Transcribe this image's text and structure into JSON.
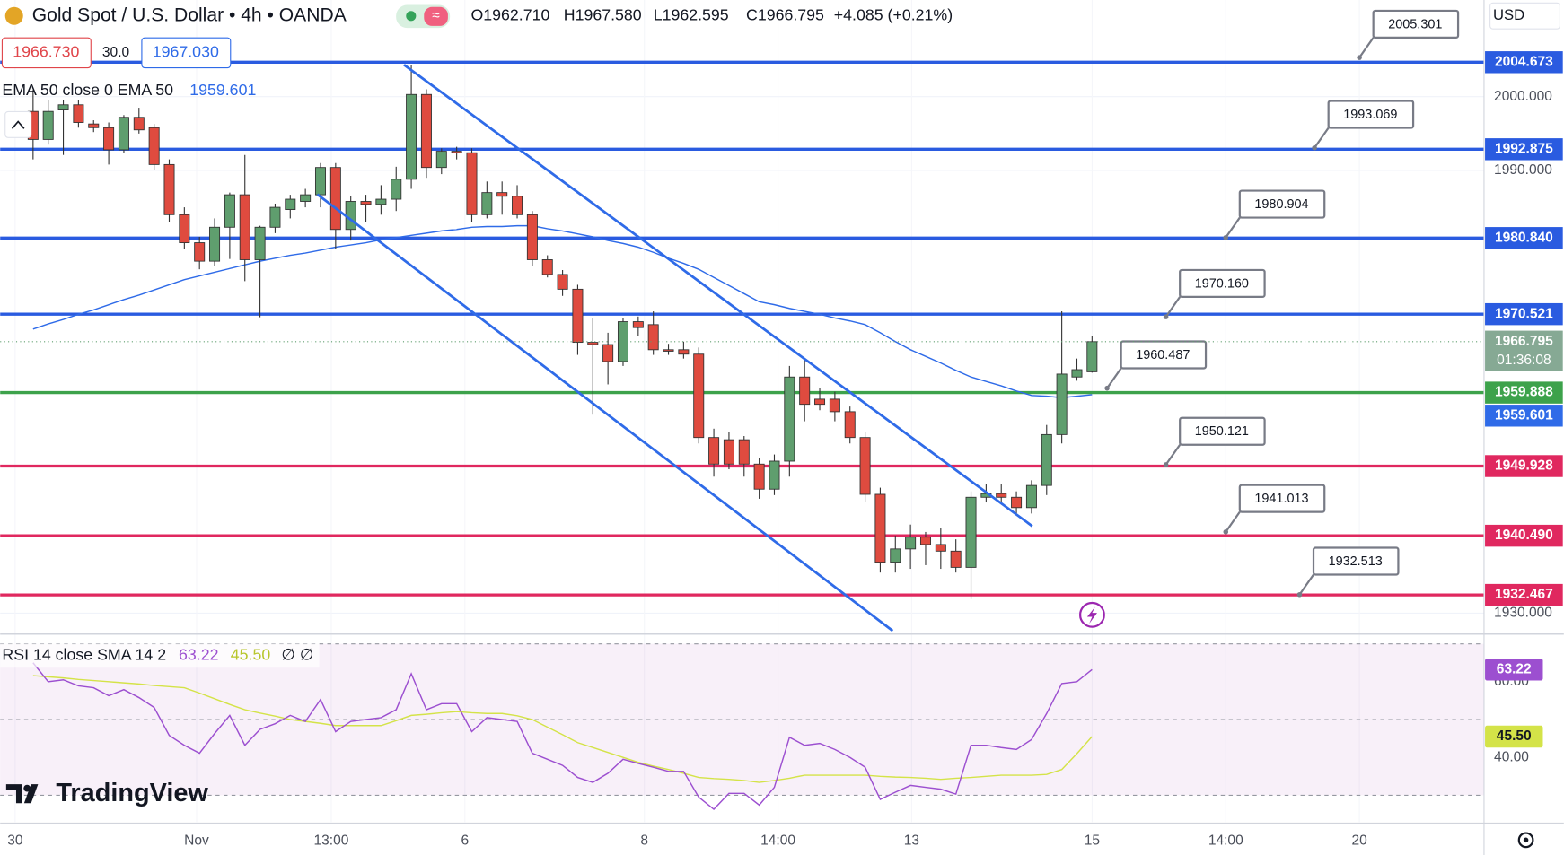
{
  "chart_data": {
    "type": "candlestick",
    "title": "Gold Spot / U.S. Dollar • 4h • OANDA",
    "ohlc": [
      "O1962.710",
      "H1967.580",
      "L1962.595",
      "C1966.795",
      "+4.085 (+0.21%)"
    ],
    "quote": {
      "sell": "1966.730",
      "spread": "30.0",
      "buy": "1967.030"
    },
    "currency": "USD",
    "brand": "TradingView",
    "countdown": "01:36:08",
    "up_color": "#5f9e6e",
    "down_color": "#df4b3f",
    "ylim": [
      1927.2,
      2013.1
    ],
    "yticks": [
      {
        "value": 2000,
        "label": "2000.000"
      },
      {
        "value": 1990,
        "label": "1990.000"
      },
      {
        "value": 1930,
        "label": "1930.000"
      }
    ],
    "xlabels": [
      "30",
      "Nov",
      "13:00",
      "6",
      "8",
      "14:00",
      "13",
      "15",
      "14:00",
      "20"
    ],
    "open": [
      1998.0,
      1994.2,
      1998.2,
      1998.9,
      1996.3,
      1995.8,
      1992.8,
      1997.2,
      1995.8,
      1990.8,
      1984.0,
      1980.2,
      1977.7,
      1982.3,
      1986.7,
      1977.9,
      1982.3,
      1984.7,
      1985.8,
      1986.7,
      1990.4,
      1982.0,
      1985.8,
      1985.4,
      1986.1,
      1988.8,
      2000.3,
      1990.4,
      1992.6,
      1992.4,
      1984.0,
      1987.0,
      1986.5,
      1984.0,
      1977.9,
      1975.9,
      1973.9,
      1966.7,
      1966.4,
      1964.1,
      1969.5,
      1969.1,
      1965.7,
      1965.7,
      1965.1,
      1953.8,
      1953.5,
      1953.5,
      1950.2,
      1946.8,
      1950.6,
      1962.0,
      1959.0,
      1959.0,
      1957.3,
      1953.8,
      1946.1,
      1936.9,
      1938.7,
      1940.3,
      1939.3,
      1938.4,
      1936.2,
      1945.7,
      1946.2,
      1945.7,
      1944.3,
      1947.3,
      1954.2,
      1962.0,
      1962.71
    ],
    "high": [
      2000.9,
      1999.6,
      1999.6,
      1999.6,
      1996.8,
      1996.5,
      1997.5,
      1998.5,
      1996.3,
      1991.5,
      1985.0,
      1981.0,
      1983.5,
      1987.0,
      1992.1,
      1982.5,
      1985.5,
      1986.7,
      1987.5,
      1991.0,
      1991.0,
      1986.5,
      1986.7,
      1988.0,
      1990.5,
      2004.3,
      2001.0,
      1993.0,
      1993.2,
      1993.0,
      1988.5,
      1988.5,
      1988.0,
      1984.5,
      1978.5,
      1976.5,
      1974.5,
      1970.0,
      1968.0,
      1970.0,
      1970.2,
      1970.9,
      1966.5,
      1966.8,
      1966.0,
      1955.0,
      1954.5,
      1954.0,
      1951.0,
      1951.5,
      1963.5,
      1964.5,
      1960.5,
      1960.0,
      1958.0,
      1954.5,
      1947.0,
      1940.5,
      1942.0,
      1941.0,
      1941.5,
      1940.0,
      1946.5,
      1947.5,
      1947.5,
      1946.5,
      1948.0,
      1955.5,
      1970.9,
      1964.5,
      1967.58
    ],
    "low": [
      1991.5,
      1993.5,
      1992.1,
      1995.8,
      1995.2,
      1990.8,
      1992.4,
      1995.0,
      1990.0,
      1983.0,
      1979.3,
      1976.6,
      1977.0,
      1978.0,
      1975.0,
      1970.1,
      1981.5,
      1983.5,
      1985.0,
      1985.0,
      1979.3,
      1980.5,
      1983.0,
      1984.0,
      1984.5,
      1987.5,
      1989.0,
      1989.5,
      1991.5,
      1983.0,
      1983.5,
      1984.0,
      1983.5,
      1977.0,
      1975.5,
      1973.0,
      1965.0,
      1956.9,
      1961.0,
      1963.5,
      1967.5,
      1965.0,
      1965.0,
      1964.5,
      1953.0,
      1948.5,
      1949.5,
      1948.5,
      1945.5,
      1946.0,
      1948.5,
      1956.0,
      1957.5,
      1956.0,
      1953.0,
      1945.0,
      1935.5,
      1935.5,
      1936.0,
      1936.5,
      1936.0,
      1935.5,
      1931.9,
      1945.0,
      1945.0,
      1943.5,
      1943.5,
      1946.0,
      1953.0,
      1961.5,
      1962.595
    ],
    "close": [
      1994.2,
      1998.0,
      1998.9,
      1996.5,
      1995.8,
      1992.8,
      1997.2,
      1995.5,
      1990.8,
      1984.0,
      1980.2,
      1977.7,
      1982.3,
      1986.7,
      1977.9,
      1982.3,
      1985.0,
      1986.1,
      1986.7,
      1990.4,
      1982.0,
      1985.8,
      1985.4,
      1986.1,
      1988.8,
      2000.3,
      1990.4,
      1992.6,
      1992.4,
      1984.0,
      1987.0,
      1986.5,
      1984.0,
      1977.9,
      1975.9,
      1973.9,
      1966.7,
      1966.4,
      1964.1,
      1969.5,
      1968.7,
      1965.7,
      1965.5,
      1965.1,
      1953.8,
      1950.2,
      1950.2,
      1950.2,
      1946.8,
      1950.6,
      1962.0,
      1958.3,
      1958.3,
      1957.3,
      1953.8,
      1946.1,
      1936.9,
      1938.7,
      1940.3,
      1939.3,
      1938.4,
      1936.2,
      1945.7,
      1946.2,
      1945.7,
      1944.3,
      1947.3,
      1954.2,
      1962.4,
      1963.0,
      1966.795
    ],
    "ema": {
      "name": "EMA 50 close 0 EMA 50",
      "color": "#2f6be8",
      "values": [
        1968.5,
        1969.2,
        1969.8,
        1970.5,
        1971.1,
        1971.8,
        1972.5,
        1973.1,
        1973.8,
        1974.5,
        1975.2,
        1975.7,
        1976.2,
        1976.7,
        1977.2,
        1977.7,
        1978.1,
        1978.5,
        1978.8,
        1979.2,
        1979.6,
        1979.9,
        1980.2,
        1980.6,
        1980.9,
        1981.2,
        1981.5,
        1981.8,
        1982.0,
        1982.3,
        1982.4,
        1982.4,
        1982.5,
        1982.5,
        1982.1,
        1981.8,
        1981.4,
        1981.0,
        1980.5,
        1980.1,
        1979.6,
        1978.9,
        1978.1,
        1977.4,
        1976.6,
        1975.5,
        1974.4,
        1973.3,
        1972.2,
        1971.8,
        1971.3,
        1970.9,
        1970.5,
        1970.0,
        1969.6,
        1969.1,
        1968.0,
        1966.8,
        1965.7,
        1964.8,
        1963.9,
        1962.9,
        1962.0,
        1961.4,
        1960.8,
        1960.1,
        1959.5,
        1959.4,
        1959.2,
        1959.4,
        1959.601
      ]
    },
    "levels": [
      {
        "value": 2004.673,
        "label": "2004.673",
        "color": "#2a5be0"
      },
      {
        "value": 1992.875,
        "label": "1992.875",
        "color": "#2a5be0"
      },
      {
        "value": 1980.84,
        "label": "1980.840",
        "color": "#2a5be0"
      },
      {
        "value": 1970.521,
        "label": "1970.521",
        "color": "#2a5be0"
      },
      {
        "value": 1959.888,
        "label": "1959.888",
        "color": "#3da24b"
      },
      {
        "value": 1949.928,
        "label": "1949.928",
        "color": "#e0285f"
      },
      {
        "value": 1940.49,
        "label": "1940.490",
        "color": "#e0285f"
      },
      {
        "value": 1932.467,
        "label": "1932.467",
        "color": "#e0285f"
      }
    ],
    "callouts": [
      {
        "value": 2005.301,
        "label": "2005.301"
      },
      {
        "value": 1993.069,
        "label": "1993.069"
      },
      {
        "value": 1980.904,
        "label": "1980.904"
      },
      {
        "value": 1970.16,
        "label": "1970.160"
      },
      {
        "value": 1960.487,
        "label": "1960.487"
      },
      {
        "value": 1950.121,
        "label": "1950.121"
      },
      {
        "value": 1941.013,
        "label": "1941.013"
      },
      {
        "value": 1932.513,
        "label": "1932.513"
      }
    ],
    "rsi": {
      "title": "RSI 14 close SMA 14 2",
      "extra": "∅ ∅",
      "ylim": [
        22.9,
        72.4
      ],
      "yticks": [
        {
          "value": 60,
          "label": "60.00"
        },
        {
          "value": 40,
          "label": "40.00"
        }
      ],
      "bands": [
        70,
        50,
        30
      ],
      "line": {
        "color": "#9c4fd0",
        "values": [
          65.0,
          60.0,
          60.5,
          58.9,
          58.4,
          56.3,
          57.9,
          55.8,
          53.2,
          45.8,
          43.2,
          41.1,
          46.3,
          51.1,
          43.2,
          47.4,
          48.9,
          51.1,
          49.5,
          55.3,
          46.8,
          49.5,
          50.0,
          50.5,
          52.6,
          62.1,
          52.6,
          54.2,
          54.2,
          46.8,
          50.5,
          50.0,
          49.5,
          41.1,
          39.5,
          37.9,
          34.7,
          33.4,
          35.8,
          39.5,
          38.4,
          37.4,
          36.3,
          36.3,
          29.5,
          26.3,
          30.5,
          30.5,
          27.4,
          32.1,
          45.3,
          43.2,
          43.7,
          42.1,
          40.0,
          37.4,
          28.9,
          30.8,
          32.6,
          32.1,
          31.6,
          30.3,
          43.2,
          43.2,
          42.6,
          42.1,
          44.7,
          51.6,
          59.5,
          60.0,
          63.22
        ]
      },
      "sma": {
        "color": "#d4e348",
        "values": [
          61.6,
          61.3,
          61.0,
          60.6,
          60.3,
          60.0,
          59.7,
          59.4,
          59.0,
          58.7,
          58.4,
          57.0,
          55.5,
          54.0,
          52.6,
          51.7,
          50.9,
          50.0,
          49.5,
          49.0,
          48.4,
          48.4,
          48.4,
          48.4,
          49.7,
          51.1,
          51.4,
          51.8,
          52.1,
          51.8,
          51.6,
          51.6,
          51.0,
          50.0,
          48.0,
          46.0,
          43.9,
          42.6,
          41.3,
          40.0,
          38.7,
          37.7,
          36.8,
          35.8,
          34.7,
          34.4,
          34.2,
          33.9,
          33.4,
          33.9,
          34.5,
          35.3,
          35.3,
          35.3,
          35.3,
          35.3,
          35.0,
          34.8,
          34.7,
          34.5,
          34.2,
          34.5,
          34.7,
          35.0,
          35.3,
          35.3,
          35.3,
          35.5,
          36.8,
          41.0,
          45.5
        ],
        "value_labels": [
          null,
          null,
          null,
          null,
          null,
          null,
          null,
          null,
          null,
          null,
          null,
          null,
          null,
          null,
          null,
          null,
          null,
          null,
          null,
          null,
          null,
          null,
          null,
          null,
          null,
          null,
          null,
          null,
          null,
          null,
          null,
          null,
          null,
          null,
          null,
          null,
          null,
          null,
          null,
          null,
          null,
          null,
          null,
          null,
          null,
          null,
          null,
          null,
          null,
          null,
          null,
          null,
          null,
          null,
          null,
          null,
          null,
          null,
          null,
          null,
          null,
          null,
          null,
          null,
          null,
          null,
          null,
          null,
          null,
          null,
          "45.50"
        ]
      }
    }
  }
}
